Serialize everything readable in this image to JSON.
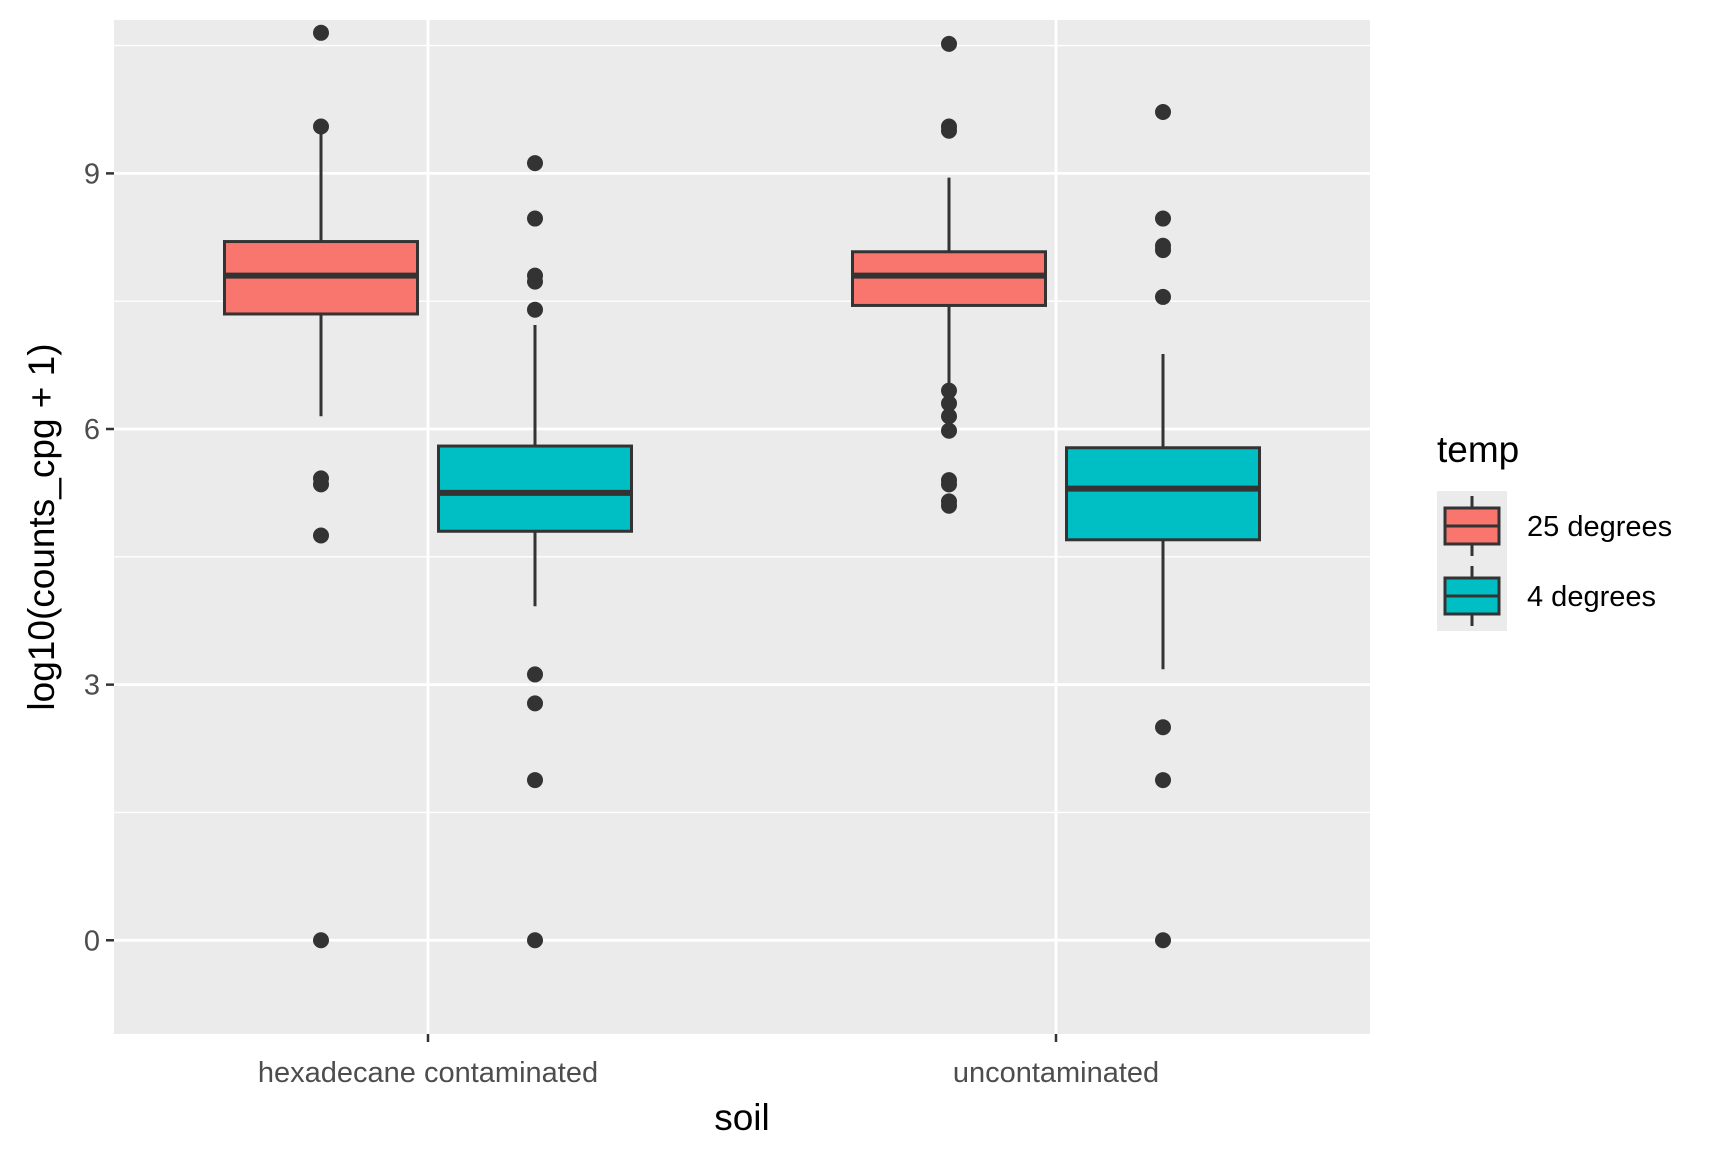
{
  "chart_data": {
    "type": "boxplot",
    "xlabel": "soil",
    "ylabel": "log10(counts_cpg + 1)",
    "categories": [
      "hexadecane contaminated",
      "uncontaminated"
    ],
    "ylim": [
      -1.1,
      10.8
    ],
    "yticks": [
      0,
      3,
      6,
      9
    ],
    "grid": true,
    "legend": {
      "title": "temp",
      "position": "right",
      "entries": [
        {
          "label": "25 degrees",
          "color": "#F8766D"
        },
        {
          "label": "4 degrees",
          "color": "#00BFC4"
        }
      ]
    },
    "series": [
      {
        "name": "25 degrees",
        "color": "#F8766D",
        "boxes": [
          {
            "category": "hexadecane contaminated",
            "whisker_low": 6.15,
            "q1": 7.35,
            "median": 7.8,
            "q3": 8.2,
            "whisker_high": 9.55,
            "outliers": [
              10.65,
              9.55,
              5.42,
              5.35,
              4.75,
              0.0
            ]
          },
          {
            "category": "uncontaminated",
            "whisker_low": 6.5,
            "q1": 7.45,
            "median": 7.8,
            "q3": 8.08,
            "whisker_high": 8.95,
            "outliers": [
              10.52,
              9.55,
              9.5,
              6.45,
              6.3,
              6.15,
              5.98,
              5.4,
              5.35,
              5.15,
              5.1
            ]
          }
        ]
      },
      {
        "name": "4 degrees",
        "color": "#00BFC4",
        "boxes": [
          {
            "category": "hexadecane contaminated",
            "whisker_low": 3.92,
            "q1": 4.8,
            "median": 5.25,
            "q3": 5.8,
            "whisker_high": 7.22,
            "outliers": [
              9.12,
              8.47,
              7.8,
              7.73,
              7.4,
              3.12,
              2.78,
              1.88,
              0.0
            ]
          },
          {
            "category": "uncontaminated",
            "whisker_low": 3.18,
            "q1": 4.7,
            "median": 5.3,
            "q3": 5.78,
            "whisker_high": 6.88,
            "outliers": [
              9.72,
              8.47,
              8.15,
              8.1,
              7.55,
              2.5,
              1.88,
              0.0
            ]
          }
        ]
      }
    ]
  },
  "colors": {
    "panel_background": "#EBEBEB",
    "grid_line": "#FFFFFF",
    "box_outline": "#333333",
    "outlier": "#333333"
  }
}
